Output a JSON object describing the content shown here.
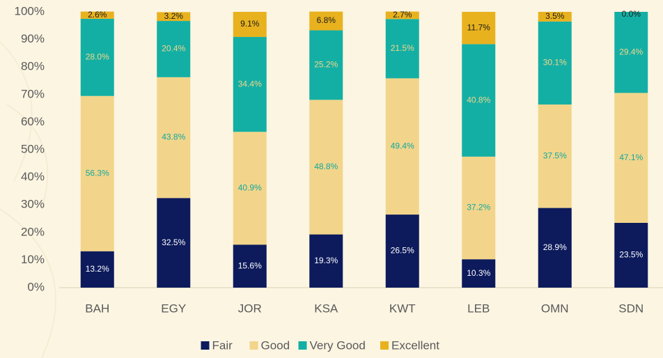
{
  "chart_data": {
    "type": "stacked_bar",
    "categories": [
      "BAH",
      "EGY",
      "JOR",
      "KSA",
      "KWT",
      "LEB",
      "OMN",
      "SDN"
    ],
    "series": [
      {
        "name": "Fair",
        "color": "#0d1b5c",
        "label_color": "#ffffff",
        "values": [
          13.2,
          32.5,
          15.6,
          19.3,
          26.5,
          10.3,
          28.9,
          23.5
        ],
        "value_labels": [
          "13.2%",
          "32.5%",
          "15.6%",
          "19.3%",
          "26.5%",
          "10.3%",
          "28.9%",
          "23.5%"
        ]
      },
      {
        "name": "Good",
        "color": "#f2d58b",
        "label_color": "#13a89e",
        "values": [
          56.3,
          43.8,
          40.9,
          48.8,
          49.4,
          37.2,
          37.5,
          47.1
        ],
        "value_labels": [
          "56.3%",
          "43.8%",
          "40.9%",
          "48.8%",
          "49.4%",
          "37.2%",
          "37.5%",
          "47.1%"
        ]
      },
      {
        "name": "Very Good",
        "color": "#14afa4",
        "label_color": "#f2d58b",
        "values": [
          28.0,
          20.4,
          34.4,
          25.2,
          21.5,
          40.8,
          30.1,
          29.4
        ],
        "value_labels": [
          "28.0%",
          "20.4%",
          "34.4%",
          "25.2%",
          "21.5%",
          "40.8%",
          "30.1%",
          "29.4%"
        ]
      },
      {
        "name": "Excellent",
        "color": "#e8b21f",
        "label_color": "#1a1a1a",
        "values": [
          2.6,
          3.2,
          9.1,
          6.8,
          2.7,
          11.7,
          3.5,
          0.0
        ],
        "value_labels": [
          "2.6%",
          "3.2%",
          "9.1%",
          "6.8%",
          "2.7%",
          "11.7%",
          "3.5%",
          "0.0%"
        ]
      }
    ],
    "ylim": [
      0,
      100
    ],
    "yticks": [
      {
        "value": 0,
        "label": "0%"
      },
      {
        "value": 10,
        "label": "10%"
      },
      {
        "value": 20,
        "label": "20%"
      },
      {
        "value": 30,
        "label": "30%"
      },
      {
        "value": 40,
        "label": "40%"
      },
      {
        "value": 50,
        "label": "50%"
      },
      {
        "value": 60,
        "label": "60%"
      },
      {
        "value": 70,
        "label": "70%"
      },
      {
        "value": 80,
        "label": "80%"
      },
      {
        "value": 90,
        "label": "90%"
      },
      {
        "value": 100,
        "label": "100%"
      }
    ],
    "legend": "bottom"
  }
}
